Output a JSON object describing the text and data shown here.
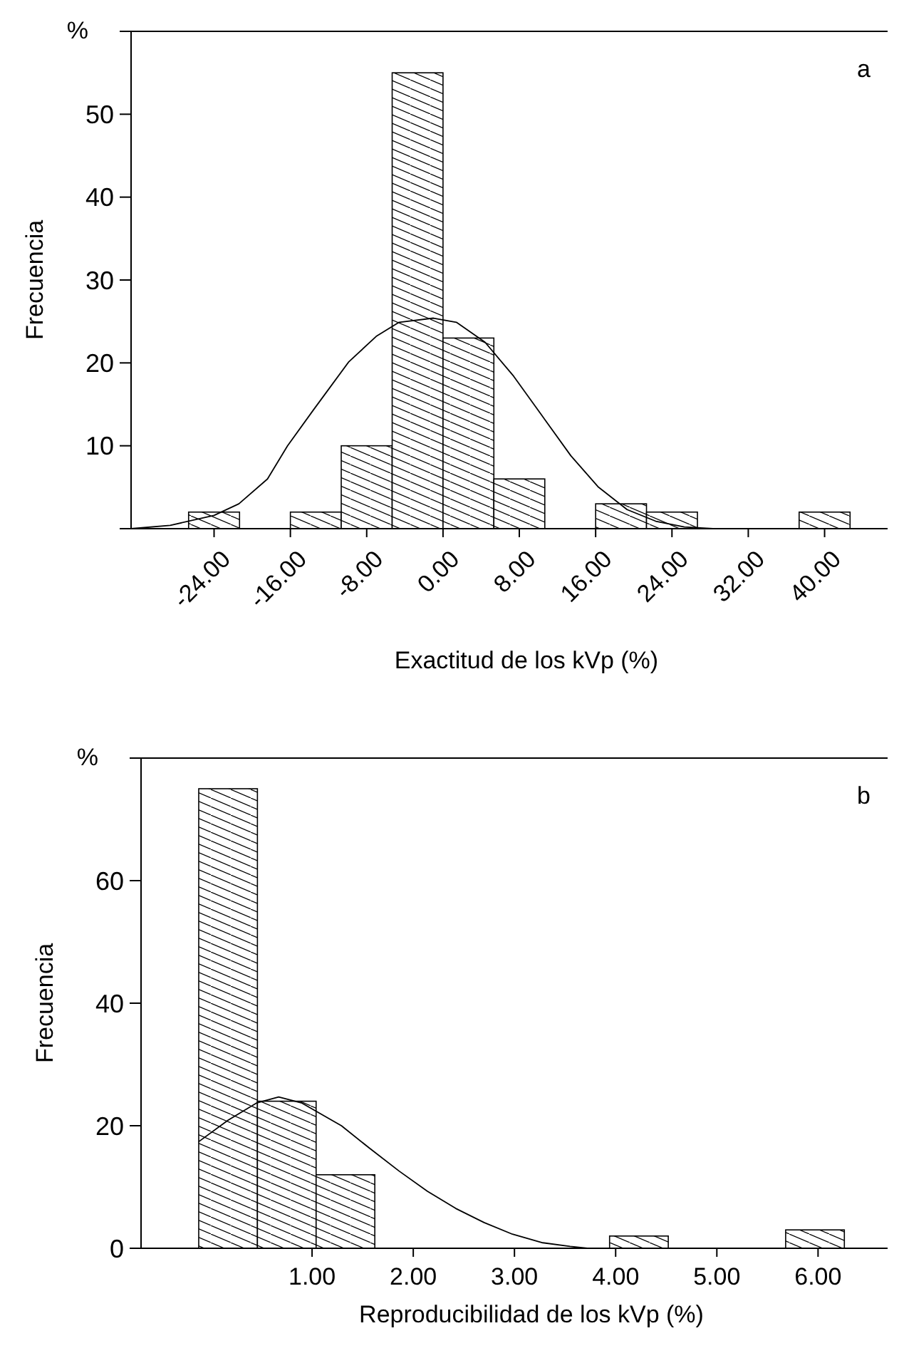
{
  "chart_data": [
    {
      "type": "histogram",
      "xlabel": "Exactitud de los kVp (%)",
      "ylabel": "Frecuencia",
      "annotations": [
        "%",
        "a"
      ],
      "bins": [
        -26.67,
        -21.33,
        -16,
        -10.67,
        -5.33,
        0,
        5.33,
        10.67,
        16,
        21.33,
        26.67,
        32,
        37.33,
        42.67
      ],
      "xlim": [
        -32.7,
        47.8
      ],
      "ylim": [
        0,
        60
      ],
      "xticks": [
        {
          "value": -24,
          "label": "-24.00"
        },
        {
          "value": -16,
          "label": "-16.00"
        },
        {
          "value": -8,
          "label": "-8.00"
        },
        {
          "value": 0,
          "label": "0.00"
        },
        {
          "value": 8,
          "label": "8.00"
        },
        {
          "value": 16,
          "label": "16.00"
        },
        {
          "value": 24,
          "label": "24.00"
        },
        {
          "value": 32,
          "label": "32.00"
        },
        {
          "value": 40,
          "label": "40.00"
        }
      ],
      "yticks": [
        {
          "value": 0,
          "label": null
        },
        10,
        20,
        30,
        40,
        50
      ],
      "grid": false,
      "series": [
        {
          "color": "#000000",
          "values": [
            2,
            0,
            2,
            10,
            55,
            23,
            6,
            0,
            3,
            2,
            0,
            0,
            2
          ]
        },
        {
          "type": "line",
          "color": "#000000",
          "x": [
            -32.7,
            -28.6,
            -24,
            -21.4,
            -18.4,
            -16.3,
            -13.6,
            -9.9,
            -7,
            -4.6,
            -1,
            1.4,
            4.4,
            7.4,
            10.4,
            13.4,
            16.3,
            19.3,
            22.3,
            25.3,
            28.3
          ],
          "values": [
            0,
            0.4,
            1.6,
            3,
            6,
            10,
            14.3,
            20.1,
            23.2,
            24.9,
            25.4,
            24.9,
            22.5,
            18.4,
            13.6,
            8.8,
            5,
            2.3,
            0.9,
            0.2,
            0
          ]
        }
      ]
    },
    {
      "type": "histogram",
      "xlabel": "Reproducibilidad de los kVp (%)",
      "ylabel": "Frecuencia",
      "annotations": [
        "%",
        "b"
      ],
      "bins": [
        -0.12,
        0.46,
        1.04,
        1.62,
        2.2,
        2.78,
        3.36,
        3.94,
        4.52,
        5.1,
        5.68,
        6.26
      ],
      "xlim": [
        -0.69,
        6.8
      ],
      "ylim": [
        0,
        80
      ],
      "xticks": [
        {
          "value": 1,
          "label": "1.00"
        },
        {
          "value": 2,
          "label": "2.00"
        },
        {
          "value": 3,
          "label": "3.00"
        },
        {
          "value": 4,
          "label": "4.00"
        },
        {
          "value": 5,
          "label": "5.00"
        },
        {
          "value": 6,
          "label": "6.00"
        }
      ],
      "yticks": [
        0,
        20,
        40,
        60
      ],
      "grid": false,
      "series": [
        {
          "color": "#000000",
          "values": [
            75,
            24,
            12,
            0,
            0,
            0,
            0,
            2,
            0,
            0,
            3
          ]
        },
        {
          "type": "line",
          "color": "#000000",
          "x": [
            -0.12,
            0.17,
            0.45,
            0.67,
            0.9,
            1.29,
            1.57,
            1.86,
            2.14,
            2.42,
            2.7,
            2.98,
            3.28,
            3.55,
            3.72
          ],
          "values": [
            17.4,
            20.9,
            23.7,
            24.7,
            23.7,
            20,
            16.3,
            12.6,
            9.3,
            6.5,
            4.2,
            2.3,
            0.9,
            0.3,
            0
          ]
        }
      ]
    }
  ]
}
